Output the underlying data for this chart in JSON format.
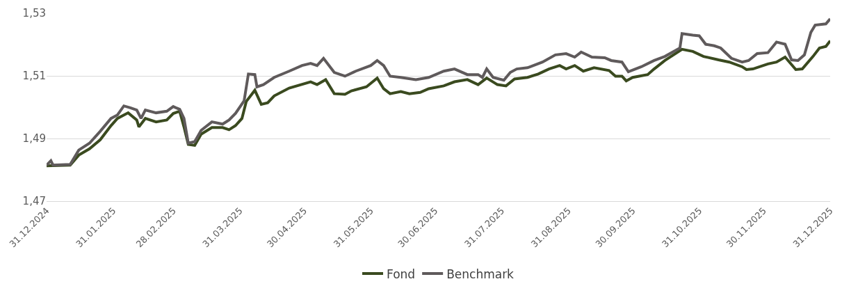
{
  "chart_data": {
    "type": "line",
    "grid": "y",
    "legend": "bottom",
    "line_style": "solid",
    "marker": "none",
    "xlim": [
      "2024-12-31",
      "2025-12-31"
    ],
    "xticks": [
      {
        "value": "2024-12-31",
        "label": "31.12.2024"
      },
      {
        "value": "2025-01-31",
        "label": "31.01.2025"
      },
      {
        "value": "2025-02-28",
        "label": "28.02.2025"
      },
      {
        "value": "2025-03-31",
        "label": "31.03.2025"
      },
      {
        "value": "2025-04-30",
        "label": "30.04.2025"
      },
      {
        "value": "2025-05-31",
        "label": "31.05.2025"
      },
      {
        "value": "2025-06-30",
        "label": "30.06.2025"
      },
      {
        "value": "2025-07-31",
        "label": "31.07.2025"
      },
      {
        "value": "2025-08-31",
        "label": "31.08.2025"
      },
      {
        "value": "2025-09-30",
        "label": "30.09.2025"
      },
      {
        "value": "2025-10-31",
        "label": "31.10.2025"
      },
      {
        "value": "2025-11-30",
        "label": "30.11.2025"
      },
      {
        "value": "2025-12-31",
        "label": "31.12.2025"
      }
    ],
    "ylim": [
      1.47,
      1.53
    ],
    "yticks": [
      {
        "value": 1.47,
        "label": "1,47"
      },
      {
        "value": 1.49,
        "label": "1,49"
      },
      {
        "value": 1.51,
        "label": "1,51"
      },
      {
        "value": 1.53,
        "label": "1,53"
      }
    ],
    "series": [
      {
        "name": "Fond",
        "color": "#3a4a1f",
        "x": [
          "2024-12-31",
          "2025-01-11",
          "2025-01-15",
          "2025-01-20",
          "2025-01-25",
          "2025-01-30",
          "2025-02-02",
          "2025-02-07",
          "2025-02-11",
          "2025-02-12",
          "2025-02-15",
          "2025-02-20",
          "2025-02-25",
          "2025-02-28",
          "2025-03-03",
          "2025-03-05",
          "2025-03-07",
          "2025-03-10",
          "2025-03-13",
          "2025-03-18",
          "2025-03-23",
          "2025-03-26",
          "2025-03-29",
          "2025-04-01",
          "2025-04-03",
          "2025-04-07",
          "2025-04-10",
          "2025-04-13",
          "2025-04-16",
          "2025-04-23",
          "2025-05-03",
          "2025-05-06",
          "2025-05-10",
          "2025-05-14",
          "2025-05-19",
          "2025-05-22",
          "2025-05-29",
          "2025-06-03",
          "2025-06-06",
          "2025-06-09",
          "2025-06-14",
          "2025-06-18",
          "2025-06-23",
          "2025-06-27",
          "2025-07-04",
          "2025-07-09",
          "2025-07-15",
          "2025-07-20",
          "2025-07-24",
          "2025-07-29",
          "2025-08-02",
          "2025-08-06",
          "2025-08-12",
          "2025-08-17",
          "2025-08-22",
          "2025-08-27",
          "2025-08-30",
          "2025-09-03",
          "2025-09-07",
          "2025-09-12",
          "2025-09-19",
          "2025-09-22",
          "2025-09-25",
          "2025-09-27",
          "2025-09-30",
          "2025-10-07",
          "2025-10-10",
          "2025-10-15",
          "2025-10-23",
          "2025-10-28",
          "2025-11-02",
          "2025-11-09",
          "2025-11-14",
          "2025-11-20",
          "2025-11-22",
          "2025-11-25",
          "2025-12-02",
          "2025-12-06",
          "2025-12-10",
          "2025-12-15",
          "2025-12-18",
          "2025-12-23",
          "2025-12-26",
          "2025-12-29",
          "2025-12-31"
        ],
        "values": [
          1.4813,
          1.4815,
          1.4847,
          1.4867,
          1.4896,
          1.4941,
          1.4964,
          1.4982,
          1.4959,
          1.4937,
          1.4964,
          1.4953,
          1.4959,
          1.498,
          1.4987,
          1.4937,
          1.4881,
          1.4878,
          1.4914,
          1.4935,
          1.4935,
          1.4928,
          1.4941,
          1.4964,
          1.5018,
          1.5054,
          1.5009,
          1.5014,
          1.5036,
          1.5061,
          1.5081,
          1.5072,
          1.5088,
          1.5043,
          1.5041,
          1.5052,
          1.5065,
          1.5093,
          1.5059,
          1.5043,
          1.505,
          1.5043,
          1.5047,
          1.5059,
          1.5068,
          1.5081,
          1.5088,
          1.5072,
          1.5093,
          1.5072,
          1.5068,
          1.509,
          1.5095,
          1.5106,
          1.5122,
          1.5133,
          1.5122,
          1.5133,
          1.5115,
          1.5126,
          1.5117,
          1.5099,
          1.5099,
          1.5084,
          1.5095,
          1.5104,
          1.5122,
          1.5149,
          1.5185,
          1.5178,
          1.5162,
          1.5151,
          1.5144,
          1.5129,
          1.512,
          1.5122,
          1.5138,
          1.5144,
          1.516,
          1.512,
          1.5122,
          1.5162,
          1.5189,
          1.5194,
          1.5212
        ]
      },
      {
        "name": "Benchmark",
        "color": "#5f5a5b",
        "x": [
          "2024-12-31",
          "2025-01-02",
          "2025-01-03",
          "2025-01-11",
          "2025-01-15",
          "2025-01-20",
          "2025-01-25",
          "2025-01-30",
          "2025-02-02",
          "2025-02-05",
          "2025-02-08",
          "2025-02-11",
          "2025-02-13",
          "2025-02-15",
          "2025-02-20",
          "2025-02-25",
          "2025-02-28",
          "2025-03-03",
          "2025-03-05",
          "2025-03-07",
          "2025-03-10",
          "2025-03-13",
          "2025-03-18",
          "2025-03-23",
          "2025-03-26",
          "2025-03-29",
          "2025-04-02",
          "2025-04-04",
          "2025-04-07",
          "2025-04-08",
          "2025-04-11",
          "2025-04-16",
          "2025-04-23",
          "2025-04-29",
          "2025-05-03",
          "2025-05-06",
          "2025-05-09",
          "2025-05-14",
          "2025-05-19",
          "2025-05-24",
          "2025-05-31",
          "2025-06-03",
          "2025-06-06",
          "2025-06-09",
          "2025-06-14",
          "2025-06-21",
          "2025-06-27",
          "2025-07-04",
          "2025-07-09",
          "2025-07-15",
          "2025-07-20",
          "2025-07-22",
          "2025-07-24",
          "2025-07-27",
          "2025-08-01",
          "2025-08-04",
          "2025-08-07",
          "2025-08-12",
          "2025-08-19",
          "2025-08-25",
          "2025-08-30",
          "2025-09-03",
          "2025-09-06",
          "2025-09-11",
          "2025-09-17",
          "2025-09-20",
          "2025-09-25",
          "2025-09-28",
          "2025-10-04",
          "2025-10-10",
          "2025-10-15",
          "2025-10-22",
          "2025-10-23",
          "2025-10-28",
          "2025-10-31",
          "2025-11-03",
          "2025-11-07",
          "2025-11-10",
          "2025-11-15",
          "2025-11-20",
          "2025-11-23",
          "2025-11-27",
          "2025-12-02",
          "2025-12-06",
          "2025-12-10",
          "2025-12-13",
          "2025-12-16",
          "2025-12-19",
          "2025-12-22",
          "2025-12-24",
          "2025-12-29",
          "2025-12-31"
        ],
        "values": [
          1.4815,
          1.4829,
          1.4815,
          1.4817,
          1.4863,
          1.4885,
          1.4923,
          1.4964,
          1.4975,
          1.5004,
          1.4998,
          1.4991,
          1.4964,
          1.4991,
          1.4982,
          1.4987,
          1.5002,
          1.4993,
          1.4964,
          1.4885,
          1.489,
          1.4926,
          1.4953,
          1.4946,
          1.4959,
          1.498,
          1.502,
          1.5106,
          1.5104,
          1.5065,
          1.5072,
          1.5095,
          1.5115,
          1.5133,
          1.514,
          1.5133,
          1.5156,
          1.5111,
          1.5099,
          1.5115,
          1.5133,
          1.5149,
          1.5133,
          1.5099,
          1.5095,
          1.5088,
          1.5095,
          1.5115,
          1.5122,
          1.5104,
          1.5104,
          1.5095,
          1.5122,
          1.5095,
          1.5086,
          1.5111,
          1.5122,
          1.5126,
          1.5144,
          1.5167,
          1.5171,
          1.516,
          1.5176,
          1.516,
          1.5158,
          1.5149,
          1.5144,
          1.5113,
          1.5129,
          1.5149,
          1.5162,
          1.5189,
          1.5235,
          1.523,
          1.5228,
          1.5201,
          1.5196,
          1.5189,
          1.5156,
          1.5144,
          1.5149,
          1.5171,
          1.5174,
          1.5208,
          1.5201,
          1.5151,
          1.5149,
          1.5167,
          1.5239,
          1.5262,
          1.5266,
          1.5282
        ]
      }
    ]
  }
}
